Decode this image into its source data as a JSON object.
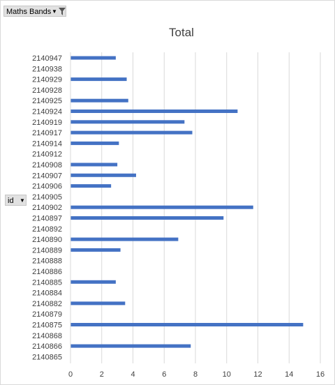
{
  "filter_button": {
    "label": "Maths Bands"
  },
  "axis_field_button": {
    "label": "id"
  },
  "chart_data": {
    "type": "bar",
    "orientation": "horizontal",
    "title": "Total",
    "xlabel": "",
    "ylabel": "",
    "xlim": [
      0,
      16
    ],
    "x_ticks": [
      0,
      2,
      4,
      6,
      8,
      10,
      12,
      14,
      16
    ],
    "grid": "vertical",
    "bar_color": "#4472c4",
    "categories": [
      "2140947",
      "2140938",
      "2140929",
      "2140928",
      "2140925",
      "2140924",
      "2140919",
      "2140917",
      "2140914",
      "2140912",
      "2140908",
      "2140907",
      "2140906",
      "2140905",
      "2140902",
      "2140897",
      "2140892",
      "2140890",
      "2140889",
      "2140888",
      "2140886",
      "2140885",
      "2140884",
      "2140882",
      "2140879",
      "2140875",
      "2140868",
      "2140866",
      "2140865"
    ],
    "values": [
      2.9,
      null,
      3.6,
      null,
      3.7,
      10.7,
      7.3,
      7.8,
      3.1,
      null,
      3.0,
      4.2,
      2.6,
      null,
      11.7,
      9.8,
      null,
      6.9,
      3.2,
      null,
      null,
      2.9,
      null,
      3.5,
      null,
      14.9,
      null,
      7.7,
      null
    ]
  }
}
